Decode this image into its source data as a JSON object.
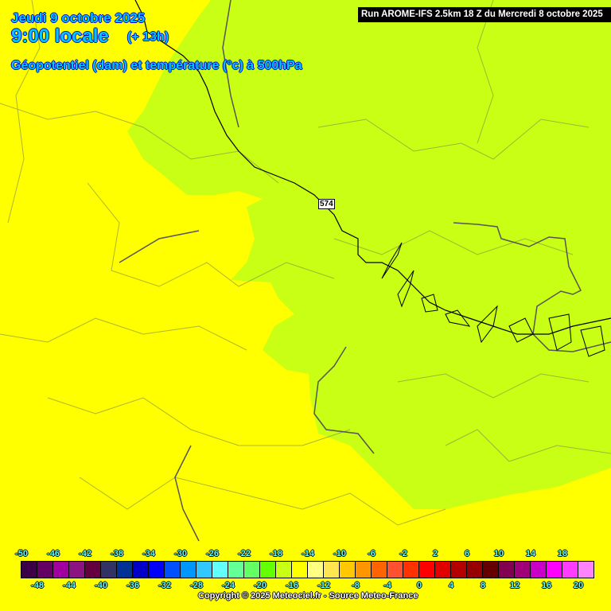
{
  "header": {
    "date": "Jeudi 9 octobre 2025",
    "hour": "9:00 locale",
    "lead": "(+ 13h)",
    "parameter": "Géopotentiel (dam) et température (°c) à 500hPa",
    "run": "Run AROME-IFS 2.5km 18 Z du Mercredi 8 octobre 2025"
  },
  "map": {
    "contour_label": "574",
    "field_colors": {
      "minus_16_to_minus_14": "#c8ff14",
      "minus_14_to_minus_12": "#ffff00"
    }
  },
  "legend": {
    "top_labels": [
      "-50",
      "-46",
      "-42",
      "-38",
      "-34",
      "-30",
      "-26",
      "-22",
      "-18",
      "-14",
      "-10",
      "-6",
      "-2",
      "2",
      "6",
      "10",
      "14",
      "18"
    ],
    "bottom_labels": [
      "-48",
      "-44",
      "-40",
      "-36",
      "-32",
      "-28",
      "-24",
      "-20",
      "-16",
      "-12",
      "-8",
      "-4",
      "0",
      "4",
      "8",
      "12",
      "16",
      "20"
    ],
    "colors": [
      "#3c0046",
      "#640064",
      "#a000a0",
      "#8c1482",
      "#640040",
      "#323264",
      "#003296",
      "#0000c8",
      "#0000ff",
      "#0050ff",
      "#0096ff",
      "#32c8ff",
      "#64ffff",
      "#64ff96",
      "#64ff64",
      "#64ff00",
      "#c8ff14",
      "#ffff00",
      "#ffff82",
      "#ffe650",
      "#ffc800",
      "#ff9600",
      "#ff6400",
      "#ff5032",
      "#ff3200",
      "#ff0000",
      "#e10000",
      "#b40000",
      "#960000",
      "#640000",
      "#820050",
      "#a00078",
      "#c800c8",
      "#ff00ff",
      "#ff3cff",
      "#ff82ff"
    ]
  },
  "copyright": "Copyright © 2025 Meteociel.fr - Source Meteo-France"
}
